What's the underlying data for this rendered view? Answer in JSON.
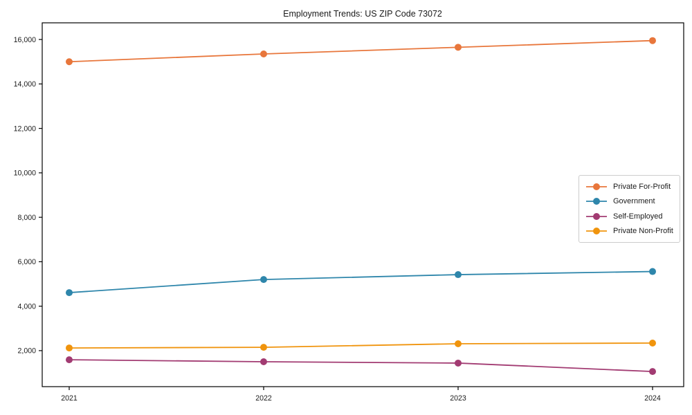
{
  "chart_data": {
    "type": "line",
    "title": "Employment Trends: US ZIP Code 73072",
    "xlabel": "",
    "ylabel": "",
    "categories": [
      "2021",
      "2022",
      "2023",
      "2024"
    ],
    "series": [
      {
        "name": "Private For-Profit",
        "color": "#E8763B",
        "values": [
          15000,
          15350,
          15650,
          15950
        ]
      },
      {
        "name": "Government",
        "color": "#2E86AB",
        "values": [
          4610,
          5200,
          5420,
          5560
        ]
      },
      {
        "name": "Self-Employed",
        "color": "#A23B72",
        "values": [
          1590,
          1500,
          1440,
          1060
        ]
      },
      {
        "name": "Private Non-Profit",
        "color": "#F0940D",
        "values": [
          2120,
          2150,
          2310,
          2340
        ]
      }
    ],
    "yticks": [
      2000,
      4000,
      6000,
      8000,
      10000,
      12000,
      14000,
      16000
    ],
    "ylim": [
      380,
      16750
    ],
    "grid": false,
    "legend_position": "center-right",
    "background_color": "#ffffff",
    "text_color": "#1a1a1a",
    "spine_color": "#000000"
  }
}
